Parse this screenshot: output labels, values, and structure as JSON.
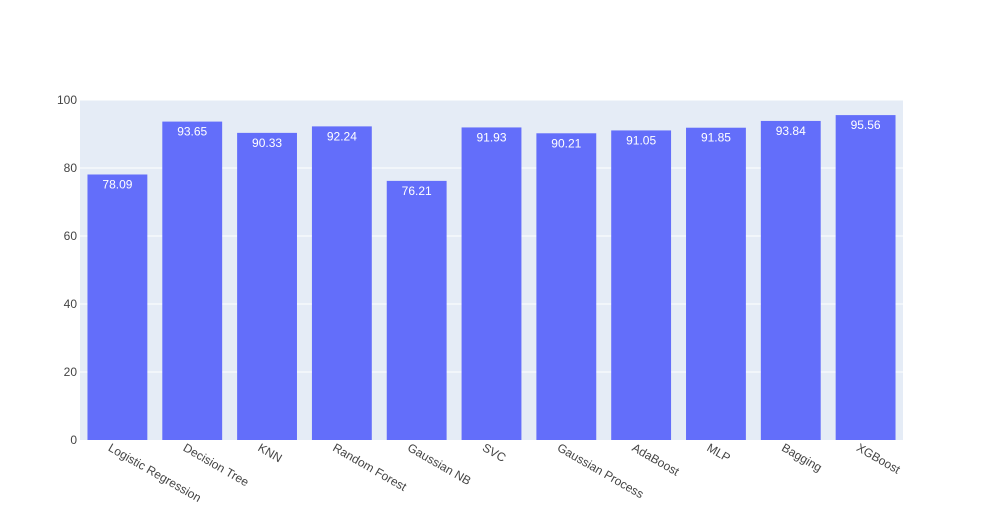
{
  "chart_data": {
    "type": "bar",
    "categories": [
      "Logistic Regression",
      "Decision Tree",
      "KNN",
      "Random Forest",
      "Gaussian NB",
      "SVC",
      "Gaussian Process",
      "AdaBoost",
      "MLP",
      "Bagging",
      "XGBoost"
    ],
    "values": [
      78.09,
      93.65,
      90.33,
      92.24,
      76.21,
      91.93,
      90.21,
      91.05,
      91.85,
      93.84,
      95.56
    ],
    "value_labels": [
      "78.09",
      "93.65",
      "90.33",
      "92.24",
      "76.21",
      "91.93",
      "90.21",
      "91.05",
      "91.85",
      "93.84",
      "95.56"
    ],
    "ylim": [
      0,
      100
    ],
    "yticks": [
      0,
      20,
      40,
      60,
      80,
      100
    ],
    "ytick_labels": [
      "0",
      "20",
      "40",
      "60",
      "80",
      "100"
    ],
    "grid": true,
    "bar_color": "#636efa",
    "plot_bg": "#e5ecf6",
    "title": "",
    "xlabel": "",
    "ylabel": ""
  }
}
